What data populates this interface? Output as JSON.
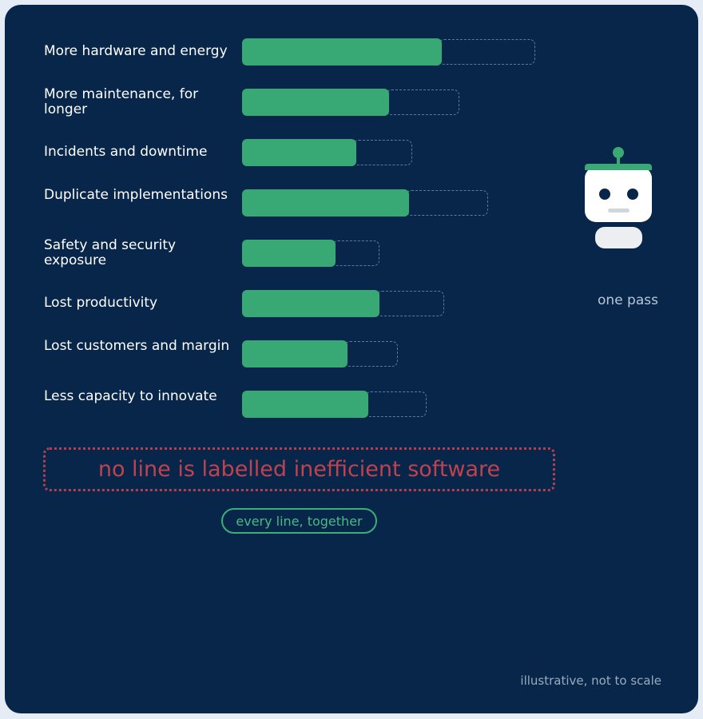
{
  "rows": [
    {
      "label": "More hardware and energy",
      "value": 0.68,
      "total": 1.0
    },
    {
      "label": "More maintenance, for longer",
      "value": 0.5,
      "total": 0.74
    },
    {
      "label": "Incidents and downtime",
      "value": 0.39,
      "total": 0.58
    },
    {
      "label": "Duplicate implementations",
      "value": 0.57,
      "total": 0.84
    },
    {
      "label": "Safety and security exposure",
      "value": 0.32,
      "total": 0.47
    },
    {
      "label": "Lost productivity",
      "value": 0.47,
      "total": 0.69
    },
    {
      "label": "Lost customers and margin",
      "value": 0.36,
      "total": 0.53
    },
    {
      "label": "Less capacity to innovate",
      "value": 0.43,
      "total": 0.63
    }
  ],
  "callout": "no line is labelled inefficient software",
  "pill": "every line, together",
  "side_caption": "one pass",
  "footnote": "illustrative, not to scale",
  "colors": {
    "background": "#07264a",
    "bar": "#38a874",
    "ghost_border": "#5d7a9c",
    "callout": "#c0424f",
    "robot_accent": "#3aaa74"
  },
  "icons": {
    "robot": "robot-icon"
  }
}
